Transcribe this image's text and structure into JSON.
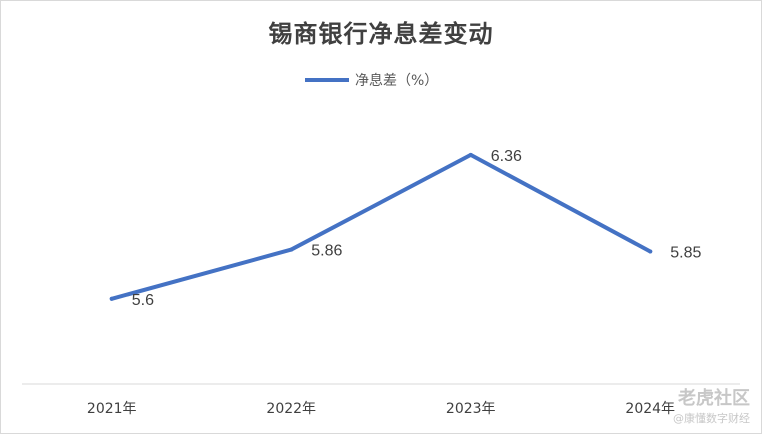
{
  "chart_data": {
    "type": "line",
    "title": "锡商银行净息差变动",
    "categories": [
      "2021年",
      "2022年",
      "2023年",
      "2024年"
    ],
    "series": [
      {
        "name": "净息差（%）",
        "values": [
          5.6,
          5.86,
          6.36,
          5.85
        ]
      }
    ],
    "data_labels": [
      "5.6",
      "5.86",
      "6.36",
      "5.85"
    ],
    "ylim": [
      5.15,
      6.65
    ],
    "grid": false,
    "legend_position": "top",
    "colors": {
      "series": "#4472C4",
      "axis": "#d9d9d9",
      "text": "#404040"
    }
  },
  "watermark": {
    "line1": "老虎社区",
    "line2": "@康懂数字财经"
  }
}
